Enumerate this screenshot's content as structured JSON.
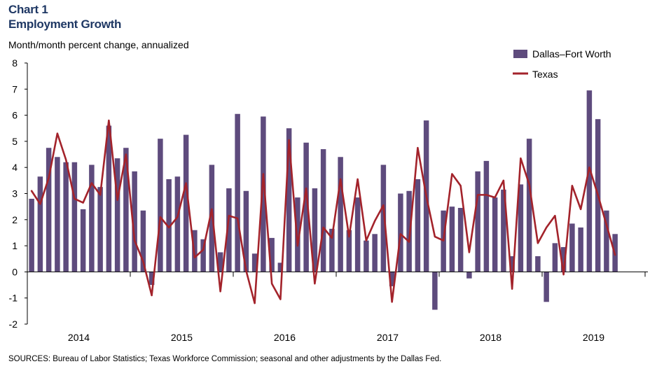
{
  "header": {
    "kicker": "Chart 1",
    "title": "Employment Growth",
    "subtitle": "Month/month  percent change, annualized"
  },
  "source": "SOURCES: Bureau of Labor Statistics; Texas Workforce Commission; seasonal and other adjustments by the Dallas Fed.",
  "colors": {
    "bars": "#5e4b7d",
    "line": "#a3232b",
    "axis": "#000000"
  },
  "chart_data": {
    "type": "bar",
    "title": "Employment Growth",
    "xlabel": "",
    "ylabel": "Month/month  percent change, annualized",
    "ylim": [
      -2,
      8
    ],
    "yticks": [
      8,
      7,
      6,
      5,
      4,
      3,
      2,
      1,
      0,
      -1,
      -2
    ],
    "year_labels": [
      "2014",
      "2015",
      "2016",
      "2017",
      "2018",
      "2019"
    ],
    "first_month": "2014-01",
    "legend_position": "top-right",
    "grid": false,
    "series": [
      {
        "name": "Dallas–Fort Worth",
        "kind": "bar",
        "values": [
          2.8,
          3.65,
          4.75,
          4.4,
          4.2,
          4.2,
          2.4,
          4.1,
          3.25,
          5.6,
          4.35,
          4.75,
          3.85,
          2.35,
          -0.5,
          5.1,
          3.55,
          3.65,
          5.25,
          1.6,
          1.25,
          4.1,
          0.75,
          3.2,
          6.05,
          3.1,
          0.7,
          5.95,
          1.3,
          0.35,
          5.5,
          2.85,
          4.95,
          3.2,
          4.7,
          1.65,
          4.4,
          1.6,
          2.85,
          1.2,
          1.45,
          4.1,
          -0.55,
          3.0,
          3.1,
          3.55,
          5.8,
          -1.45,
          2.35,
          2.5,
          2.45,
          -0.25,
          3.85,
          4.25,
          2.85,
          3.15,
          0.6,
          3.35,
          5.1,
          0.6,
          -1.15,
          1.1,
          0.95,
          1.85,
          1.7,
          6.95,
          5.85,
          2.35,
          1.45
        ]
      },
      {
        "name": "Texas",
        "kind": "line",
        "values": [
          3.1,
          2.6,
          3.6,
          5.3,
          4.3,
          2.8,
          2.65,
          3.4,
          2.95,
          5.8,
          2.75,
          4.5,
          1.2,
          0.4,
          -0.9,
          2.1,
          1.7,
          2.1,
          3.4,
          0.55,
          0.85,
          2.4,
          -0.75,
          2.15,
          2.05,
          0.05,
          -1.2,
          3.75,
          -0.45,
          -1.05,
          5.05,
          1.0,
          3.2,
          -0.45,
          1.7,
          1.3,
          3.55,
          1.35,
          3.55,
          1.2,
          1.95,
          2.55,
          -1.15,
          1.45,
          1.15,
          4.75,
          2.9,
          1.35,
          1.2,
          3.75,
          3.3,
          0.75,
          2.95,
          2.95,
          2.85,
          3.5,
          -0.65,
          4.35,
          3.35,
          1.1,
          1.7,
          2.15,
          -0.1,
          3.3,
          2.4,
          4.0,
          2.95,
          1.8,
          0.65
        ]
      }
    ]
  }
}
